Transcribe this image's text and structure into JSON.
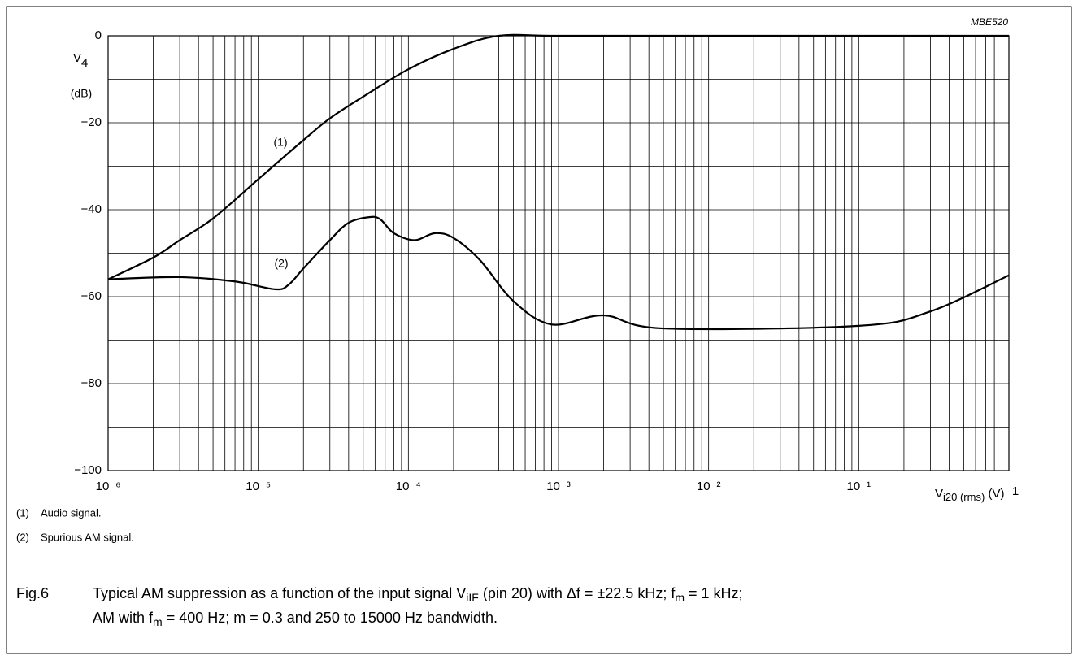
{
  "chart_data": {
    "type": "line",
    "code": "MBE520",
    "y_label": {
      "symbol": [
        "V",
        "4"
      ],
      "unit": "(dB)"
    },
    "x_label": [
      "V",
      "i20 (rms)",
      " (V)"
    ],
    "xlog": true,
    "grid": true,
    "minor_grid": true,
    "xlim": [
      1e-06,
      1
    ],
    "xticks": [
      {
        "value": 1e-06,
        "label": "10⁻⁶"
      },
      {
        "value": 1e-05,
        "label": "10⁻⁵"
      },
      {
        "value": 0.0001,
        "label": "10⁻⁴"
      },
      {
        "value": 0.001,
        "label": "10⁻³"
      },
      {
        "value": 0.01,
        "label": "10⁻²"
      },
      {
        "value": 0.1,
        "label": "10⁻¹"
      },
      1
    ],
    "ylim": [
      -100,
      0
    ],
    "yticks": [
      {
        "value": -100,
        "label": "−100"
      },
      {
        "value": -80,
        "label": "−80"
      },
      {
        "value": -60,
        "label": "−60"
      },
      {
        "value": -40,
        "label": "−40"
      },
      {
        "value": -20,
        "label": "−20"
      },
      0
    ],
    "series": [
      {
        "name": "Audio signal.",
        "marker": "(1)",
        "color": "#000000",
        "x": [
          1e-06,
          2e-06,
          3e-06,
          5e-06,
          1e-05,
          2e-05,
          3e-05,
          5e-05,
          0.0001,
          0.0002,
          0.0004,
          0.001,
          0.01,
          0.1,
          1
        ],
        "values": [
          -56,
          -51,
          -47,
          -42,
          -33,
          -24,
          -19,
          -14,
          -7.7,
          -3,
          0,
          0,
          0,
          0,
          0
        ]
      },
      {
        "name": "Spurious AM signal.",
        "marker": "(2)",
        "color": "#000000",
        "x": [
          1e-06,
          3e-06,
          7e-06,
          1.3e-05,
          1.6e-05,
          2e-05,
          3e-05,
          4e-05,
          5.5e-05,
          6.5e-05,
          8e-05,
          0.00011,
          0.00015,
          0.0002,
          0.0003,
          0.0005,
          0.0009,
          0.002,
          0.005,
          0.1,
          0.3,
          1
        ],
        "values": [
          -56,
          -55.5,
          -56.5,
          -58.3,
          -57.2,
          -53.5,
          -47,
          -43,
          -41.7,
          -42.2,
          -45.4,
          -47,
          -45.4,
          -46.5,
          -51.6,
          -61,
          -66.4,
          -64.3,
          -67.3,
          -66.7,
          -63.4,
          -55.1
        ]
      }
    ],
    "caption": {
      "label": "Fig.6",
      "lines": [
        [
          "Typical AM suppression as a function of the input signal V",
          "iIF",
          " (pin 20) with Δf = ±22.5 kHz; f",
          "m",
          " = 1 kHz;"
        ],
        [
          "AM with f",
          "m",
          " = 400 Hz; m = 0.3 and 250 to 15000 Hz bandwidth."
        ]
      ]
    }
  }
}
